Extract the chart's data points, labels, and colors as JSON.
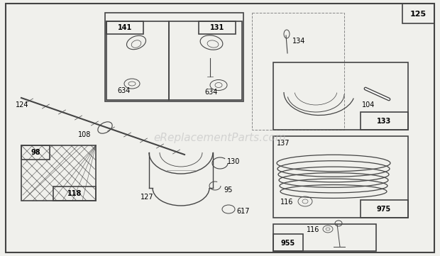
{
  "bg_color": "#f0f0ec",
  "line_color": "#444444",
  "light_color": "#888888",
  "watermark": "eReplacementParts.com",
  "watermark_color": "#bbbbbb",
  "watermark_fontsize": 11,
  "fig_w": 6.2,
  "fig_h": 3.61
}
